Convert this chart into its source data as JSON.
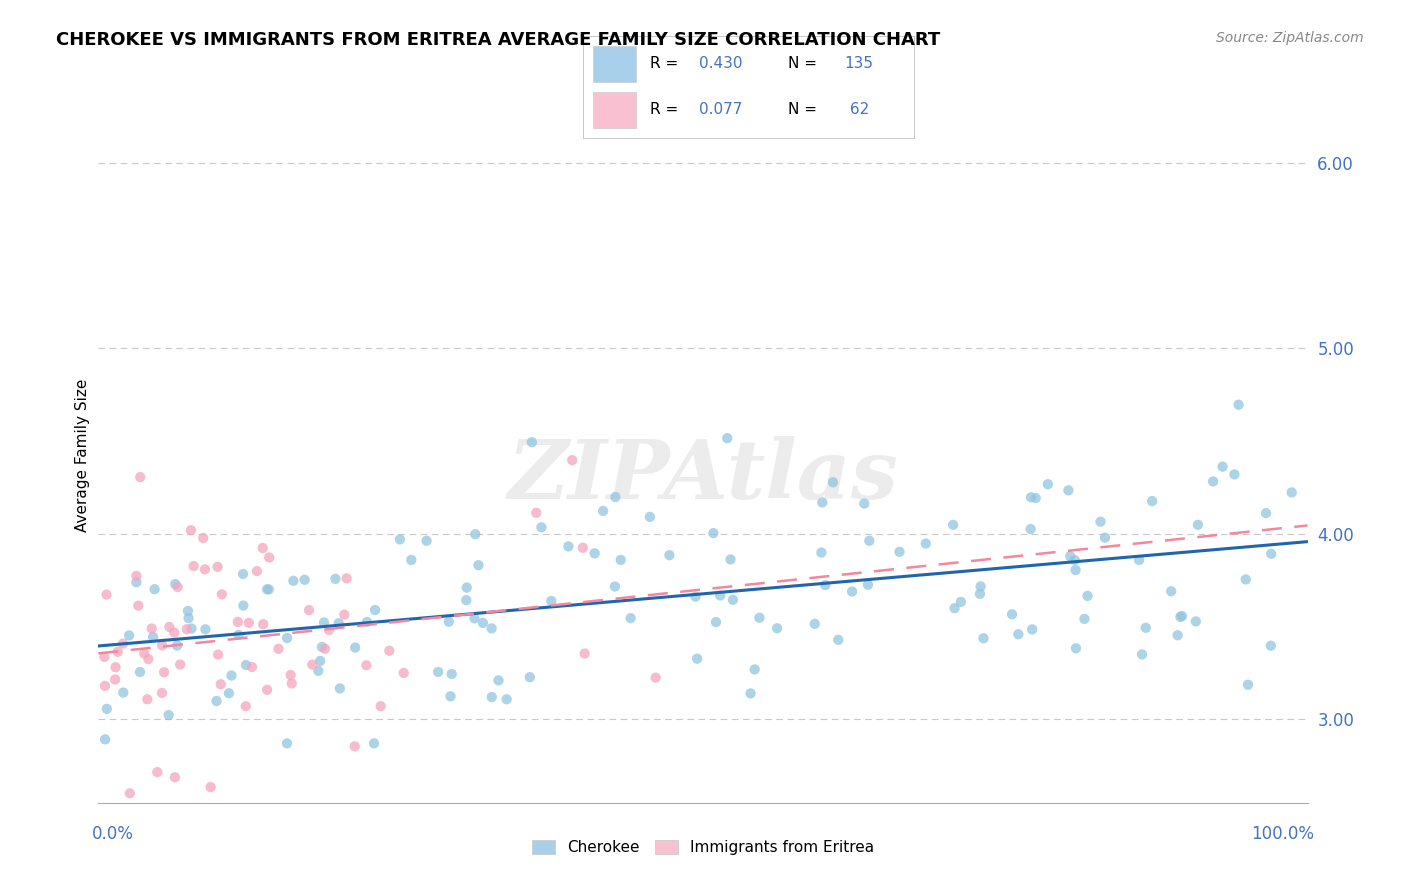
{
  "title": "CHEROKEE VS IMMIGRANTS FROM ERITREA AVERAGE FAMILY SIZE CORRELATION CHART",
  "source": "Source: ZipAtlas.com",
  "ylabel": "Average Family Size",
  "watermark": "ZIPAtlas",
  "series1_label": "Cherokee",
  "series2_label": "Immigrants from Eritrea",
  "series1_color": "#92c5de",
  "series2_color": "#f4a6be",
  "trendline1_color": "#2166ac",
  "trendline2_color": "#f4869e",
  "legend_patch1_color": "#a8d0ea",
  "legend_patch2_color": "#f8c0d0",
  "xlim": [
    0,
    1
  ],
  "ylim": [
    2.55,
    6.3
  ],
  "yticks": [
    3.0,
    4.0,
    5.0,
    6.0
  ],
  "xtick_count": 11,
  "grid_color": "#c8c8c8",
  "background_color": "#ffffff",
  "text_blue": "#4472c4",
  "series1_R": 0.43,
  "series1_N": 135,
  "series2_R": 0.077,
  "series2_N": 62,
  "seed": 42,
  "dot_size": 55,
  "dot_alpha": 0.75
}
